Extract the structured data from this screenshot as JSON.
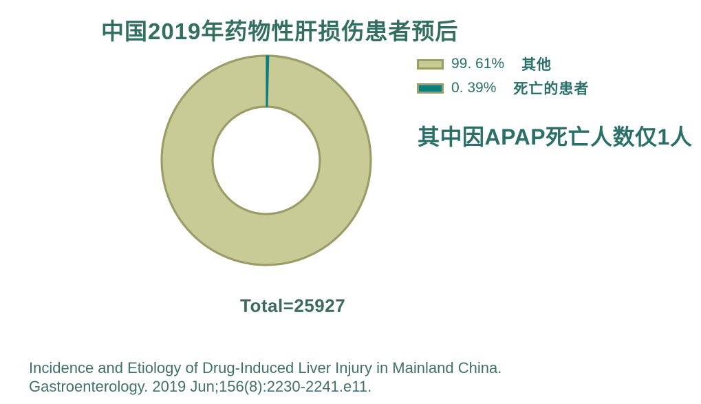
{
  "title": "中国2019年药物性肝损伤患者预后",
  "chart_data": {
    "type": "pie",
    "subtype": "donut",
    "title": "中国2019年药物性肝损伤患者预后",
    "categories": [
      "其他",
      "死亡的患者"
    ],
    "values": [
      99.61,
      0.39
    ],
    "unit": "%",
    "total": 25927,
    "total_label": "Total=25927",
    "colors": [
      "#c9cb97",
      "#0b7f7e"
    ],
    "border_color": "#9a9d68",
    "start_angle_deg": -90,
    "direction": "clockwise",
    "legend_position": "right",
    "legend": [
      {
        "pct_label": "99. 61%",
        "label": "其他",
        "color": "#c9cb97"
      },
      {
        "pct_label": "0. 39%",
        "label": "死亡的患者",
        "color": "#0b7f7e"
      }
    ],
    "annotation": "其中因APAP死亡人数仅1人"
  },
  "annotation": "其中因APAP死亡人数仅1人",
  "total_label": "Total=25927",
  "citation": {
    "line1": "Incidence and Etiology of Drug-Induced Liver Injury in Mainland China.",
    "line2": "Gastroenterology. 2019 Jun;156(8):2230-2241.e11."
  },
  "colors": {
    "background": "#ffffff",
    "title_text": "#336f60",
    "legend_annotation_text": "#2a6f68",
    "total_text": "#3c6a63",
    "citation_text": "#41706a",
    "donut_fill": "#c9cb97",
    "donut_border": "#9a9d68",
    "accent_teal": "#0b7f7e",
    "hole_fill": "#ffffff"
  }
}
